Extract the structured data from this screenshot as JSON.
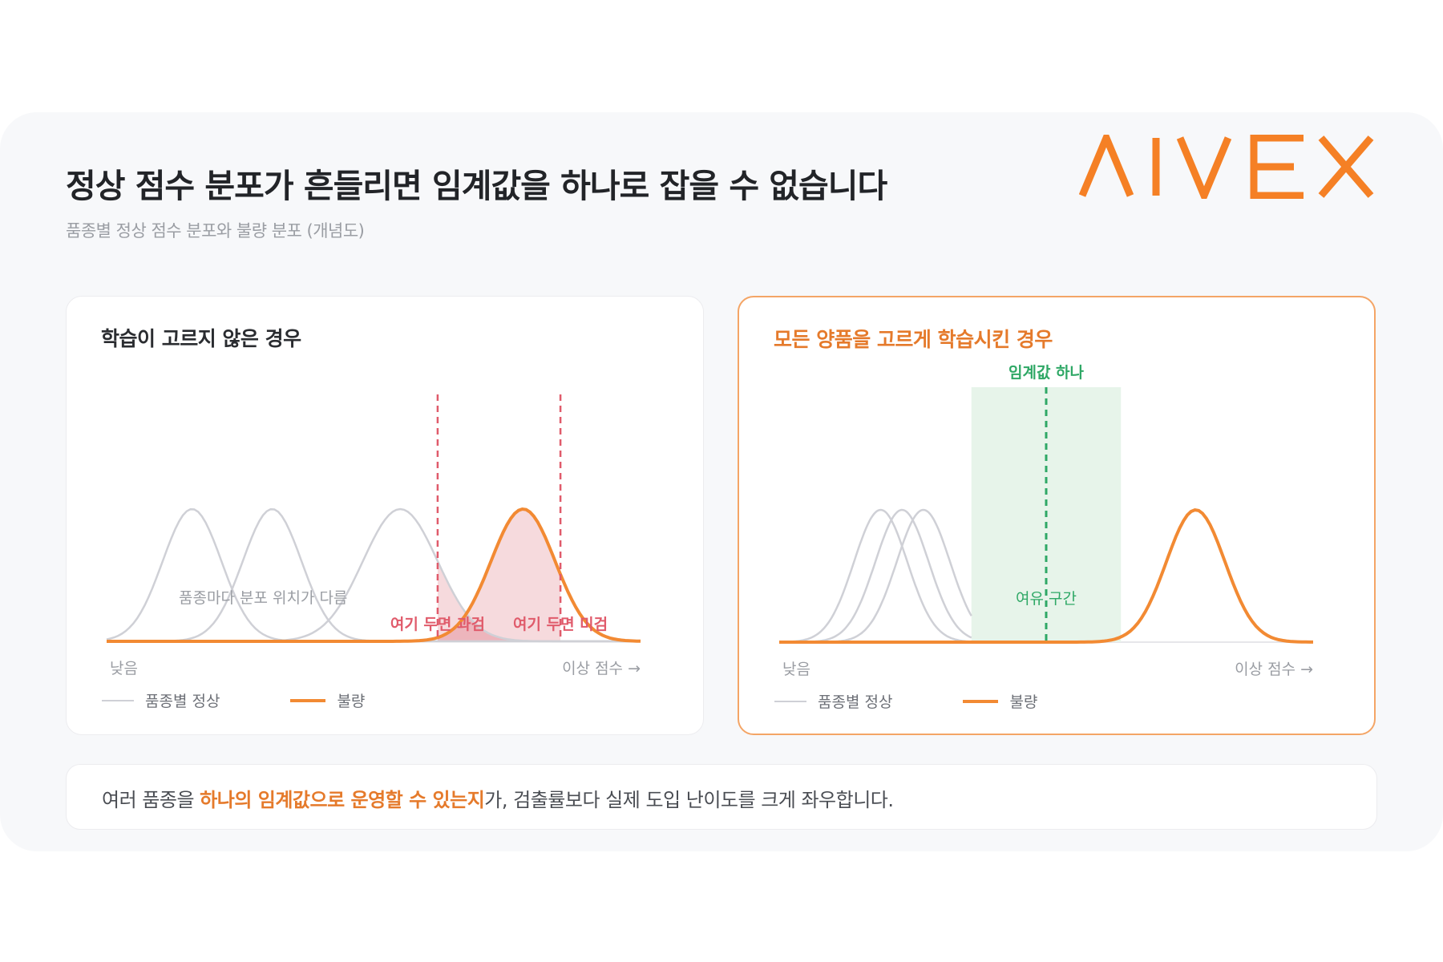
{
  "header": {
    "title": "정상 점수 분포가 흔들리면 임계값을 하나로 잡을 수 없습니다",
    "subtitle": "품종별 정상 점수 분포와 불량 분포 (개념도)"
  },
  "logo": {
    "text": "AIVEX",
    "color": "#f58025"
  },
  "colors": {
    "accent_orange": "#f28a33",
    "normal_gray": "#cfd0d6",
    "threshold_red": "#e05b6b",
    "threshold_green": "#2fa866",
    "safe_zone_green": "#e7f4ea"
  },
  "chart_data": [
    {
      "type": "line",
      "title": "학습이 고르지 않은 경우",
      "x_axis": {
        "left_label": "낮음",
        "right_label": "이상 점수 →"
      },
      "series": [
        {
          "name": "품종별 정상",
          "curves": [
            {
              "peak_x": 0.16
            },
            {
              "peak_x": 0.31
            },
            {
              "peak_x": 0.55
            }
          ]
        },
        {
          "name": "불량",
          "curves": [
            {
              "peak_x": 0.78
            }
          ]
        }
      ],
      "thresholds": [
        {
          "label": "여기 두면 과검",
          "x": 0.62
        },
        {
          "label": "여기 두면 미검",
          "x": 0.85
        }
      ],
      "annotation": "품종마다 분포 위치가 다름",
      "legend": [
        "품종별 정상",
        "불량"
      ]
    },
    {
      "type": "line",
      "title": "모든 양품을 고르게 학습시킨 경우",
      "x_axis": {
        "left_label": "낮음",
        "right_label": "이상 점수 →"
      },
      "series": [
        {
          "name": "품종별 정상",
          "curves": [
            {
              "peak_x": 0.19
            },
            {
              "peak_x": 0.23
            },
            {
              "peak_x": 0.27
            }
          ]
        },
        {
          "name": "불량",
          "curves": [
            {
              "peak_x": 0.78
            }
          ]
        }
      ],
      "threshold": {
        "label": "임계값 하나",
        "x": 0.5
      },
      "margin_zone": {
        "label": "여유 구간",
        "from": 0.36,
        "to": 0.64
      },
      "legend": [
        "품종별 정상",
        "불량"
      ]
    }
  ],
  "footer": {
    "before": "여러 품종을 ",
    "highlight": "하나의 임계값으로 운영할 수 있는지",
    "after": "가, 검출률보다 실제 도입 난이도를 크게 좌우합니다."
  }
}
